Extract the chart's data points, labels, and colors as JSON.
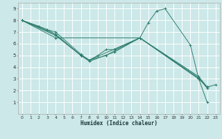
{
  "xlabel": "Humidex (Indice chaleur)",
  "background_color": "#cce8e8",
  "grid_color": "#ffffff",
  "line_color": "#2e7d6e",
  "xlim": [
    -0.5,
    23.5
  ],
  "ylim": [
    0,
    9.5
  ],
  "xticks": [
    0,
    1,
    2,
    3,
    4,
    5,
    6,
    7,
    8,
    9,
    10,
    11,
    12,
    13,
    14,
    15,
    16,
    17,
    18,
    19,
    20,
    21,
    22,
    23
  ],
  "yticks": [
    1,
    2,
    3,
    4,
    5,
    6,
    7,
    8,
    9
  ],
  "series": [
    {
      "x": [
        0,
        2,
        3,
        4,
        7,
        8,
        9,
        10,
        11,
        14,
        21,
        22,
        23
      ],
      "y": [
        8,
        7.5,
        7.2,
        7.0,
        5.1,
        4.6,
        5.0,
        5.5,
        5.5,
        6.5,
        3.0,
        2.3,
        2.5
      ]
    },
    {
      "x": [
        0,
        3,
        4,
        7,
        8,
        14,
        15,
        16,
        17,
        20,
        21,
        22
      ],
      "y": [
        8,
        7.2,
        6.8,
        5.0,
        4.6,
        6.5,
        7.8,
        8.8,
        9.0,
        5.9,
        3.0,
        2.3
      ]
    },
    {
      "x": [
        0,
        4,
        7,
        8,
        10,
        11,
        14,
        21,
        22
      ],
      "y": [
        8,
        6.8,
        5.0,
        4.6,
        5.0,
        5.4,
        6.5,
        3.0,
        1.0
      ]
    },
    {
      "x": [
        0,
        4,
        7,
        8,
        11,
        14,
        21,
        22
      ],
      "y": [
        8,
        6.7,
        5.0,
        4.5,
        5.3,
        6.5,
        3.1,
        2.2
      ]
    },
    {
      "x": [
        0,
        4,
        14,
        21,
        22
      ],
      "y": [
        8,
        6.5,
        6.5,
        3.2,
        2.3
      ]
    }
  ]
}
